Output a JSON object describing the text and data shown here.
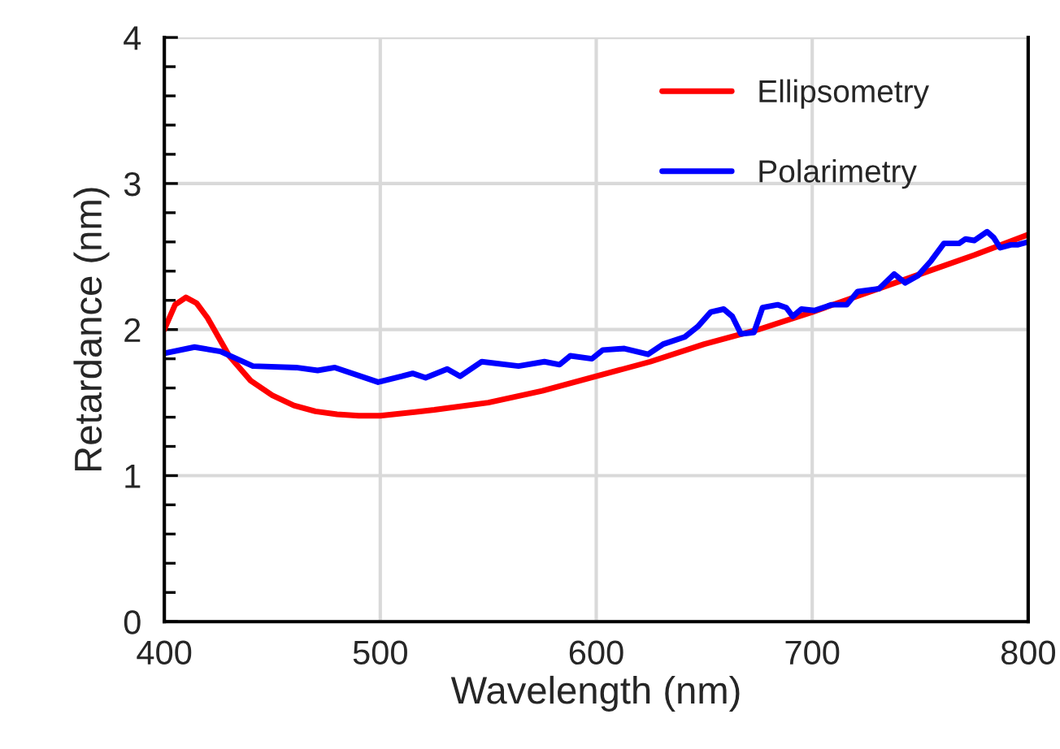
{
  "chart_data": {
    "type": "line",
    "xlabel": "Wavelength (nm)",
    "ylabel": "Retardance (nm)",
    "xlim": [
      400,
      800
    ],
    "xticks": [
      400,
      500,
      600,
      700,
      800
    ],
    "ylim": [
      0,
      4
    ],
    "yticks": [
      0,
      {
        "value": 0.2,
        "label": null
      },
      {
        "value": 0.4,
        "label": null
      },
      {
        "value": 0.6,
        "label": null
      },
      {
        "value": 0.8,
        "label": null
      },
      1,
      {
        "value": 1.2,
        "label": null
      },
      {
        "value": 1.4,
        "label": null
      },
      {
        "value": 1.6,
        "label": null
      },
      {
        "value": 1.8,
        "label": null
      },
      2,
      {
        "value": 2.2,
        "label": null
      },
      {
        "value": 2.4,
        "label": null
      },
      {
        "value": 2.6,
        "label": null
      },
      {
        "value": 2.8,
        "label": null
      },
      3,
      {
        "value": 3.2,
        "label": null
      },
      {
        "value": 3.4,
        "label": null
      },
      {
        "value": 3.6,
        "label": null
      },
      {
        "value": 3.8,
        "label": null
      },
      4
    ],
    "grid": true,
    "legend": "top right",
    "marker": "none",
    "line_style": "solid",
    "series": [
      {
        "name": "Ellipsometry",
        "color": "#ff0000",
        "x": [
          400,
          405,
          410,
          415,
          420,
          430,
          440,
          450,
          460,
          470,
          480,
          490,
          500,
          525,
          550,
          575,
          600,
          625,
          650,
          675,
          700,
          725,
          750,
          775,
          800
        ],
        "values": [
          2.0,
          2.17,
          2.22,
          2.18,
          2.08,
          1.82,
          1.65,
          1.55,
          1.48,
          1.44,
          1.42,
          1.41,
          1.41,
          1.45,
          1.5,
          1.58,
          1.68,
          1.78,
          1.9,
          2.0,
          2.12,
          2.25,
          2.38,
          2.51,
          2.65
        ]
      },
      {
        "name": "Polarimetry",
        "color": "#0000ff",
        "x": [
          401,
          414,
          426,
          441,
          461,
          471,
          479,
          499,
          510,
          515,
          521,
          531,
          537,
          547,
          564,
          576,
          583,
          588,
          598,
          603,
          613,
          624,
          631,
          641,
          647,
          653,
          659,
          663,
          667,
          673,
          677,
          684,
          688,
          691,
          695,
          701,
          709,
          716,
          721,
          731,
          738,
          743,
          749,
          755,
          761,
          768,
          771,
          775,
          781,
          784,
          787,
          792,
          795,
          800
        ],
        "values": [
          1.84,
          1.88,
          1.85,
          1.75,
          1.74,
          1.72,
          1.74,
          1.64,
          1.68,
          1.7,
          1.67,
          1.73,
          1.68,
          1.78,
          1.75,
          1.78,
          1.76,
          1.82,
          1.8,
          1.86,
          1.87,
          1.83,
          1.9,
          1.95,
          2.02,
          2.12,
          2.14,
          2.09,
          1.97,
          1.98,
          2.15,
          2.17,
          2.15,
          2.09,
          2.14,
          2.13,
          2.17,
          2.17,
          2.26,
          2.28,
          2.38,
          2.32,
          2.37,
          2.47,
          2.59,
          2.59,
          2.62,
          2.61,
          2.67,
          2.63,
          2.56,
          2.58,
          2.58,
          2.6
        ]
      }
    ]
  }
}
